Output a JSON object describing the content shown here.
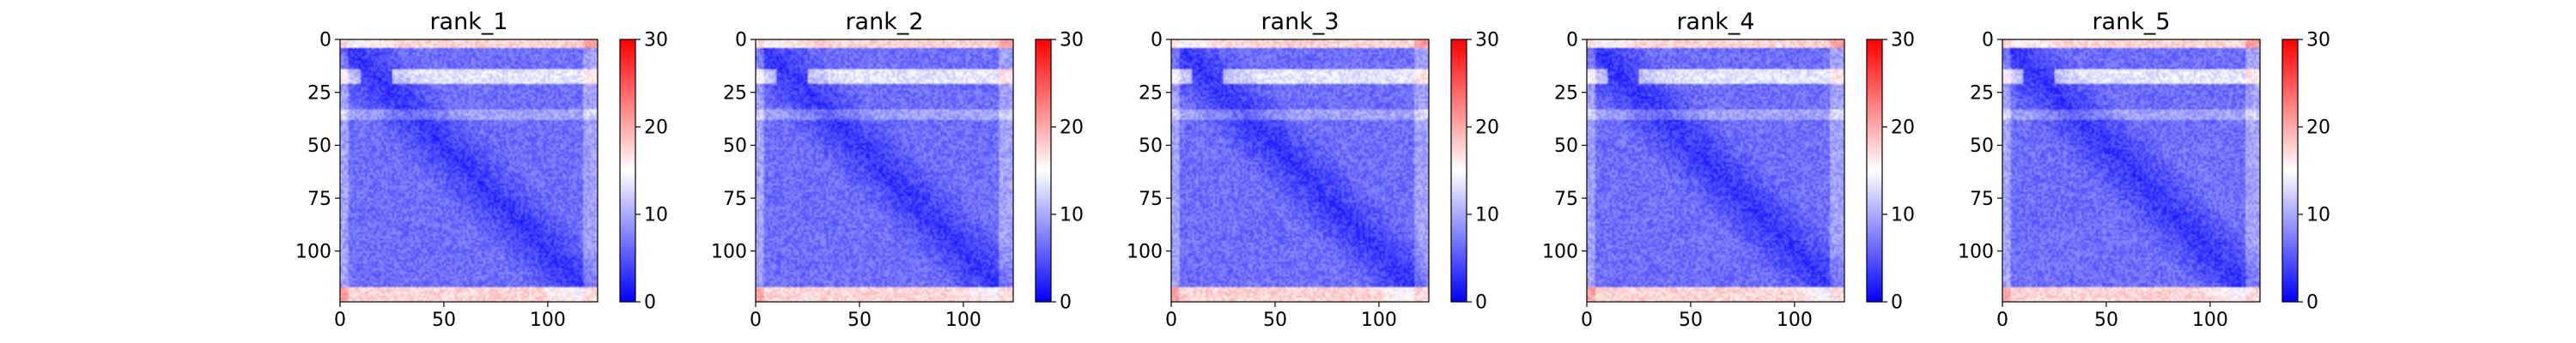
{
  "chart_data": {
    "type": "heatmap",
    "colormap": "bwr",
    "colorbar": {
      "vmin": 0,
      "vmax": 30,
      "ticks": [
        "0",
        "10",
        "20",
        "30"
      ],
      "colors": [
        "#0000ff",
        "#ffffff",
        "#ff0000"
      ]
    },
    "matrix_size": 124,
    "xlim": [
      0,
      124
    ],
    "ylim": [
      124,
      0
    ],
    "x_ticks": [
      "0",
      "50",
      "100"
    ],
    "y_ticks": [
      "0",
      "25",
      "50",
      "75",
      "100"
    ],
    "panels": [
      {
        "title": "rank_1"
      },
      {
        "title": "rank_2"
      },
      {
        "title": "rank_3"
      },
      {
        "title": "rank_4"
      },
      {
        "title": "rank_5"
      }
    ]
  }
}
